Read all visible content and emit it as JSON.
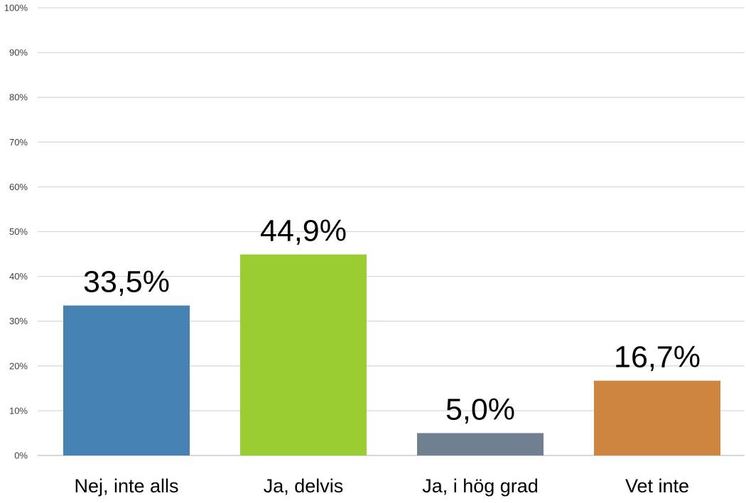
{
  "chart_data": {
    "type": "bar",
    "title": "",
    "xlabel": "",
    "ylabel": "",
    "categories": [
      "Nej, inte alls",
      "Ja, delvis",
      "Ja, i hög grad",
      "Vet inte"
    ],
    "values": [
      33.5,
      44.9,
      5.0,
      16.7
    ],
    "data_labels": [
      "33,5%",
      "44,9%",
      "5,0%",
      "16,7%"
    ],
    "colors": [
      "#4682b4",
      "#9acd32",
      "#708090",
      "#cd853f"
    ],
    "ylim": [
      0,
      100
    ],
    "yticks": [
      0,
      10,
      20,
      30,
      40,
      50,
      60,
      70,
      80,
      90,
      100
    ],
    "ytick_labels": [
      "0%",
      "10%",
      "20%",
      "30%",
      "40%",
      "50%",
      "60%",
      "70%",
      "80%",
      "90%",
      "100%"
    ],
    "grid": true,
    "legend": "none"
  }
}
